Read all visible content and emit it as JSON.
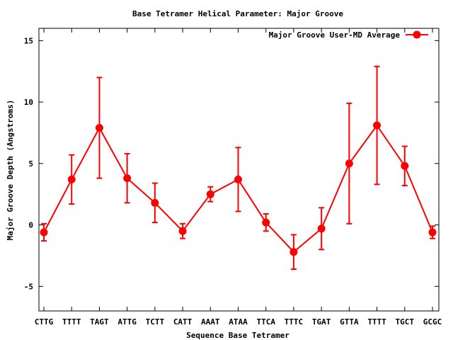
{
  "chart_data": {
    "type": "line",
    "title": "Base Tetramer Helical Parameter: Major Groove",
    "xlabel": "Sequence Base Tetramer",
    "ylabel": "Major Groove Depth (Angstroms)",
    "ylim": [
      -7,
      16
    ],
    "yticks": [
      -5,
      0,
      5,
      10,
      15
    ],
    "grid": false,
    "legend_position": "top-right",
    "categories": [
      "CTTG",
      "TTTT",
      "TAGT",
      "ATTG",
      "TCTT",
      "CATT",
      "AAAT",
      "ATAA",
      "TTCA",
      "TTTC",
      "TGAT",
      "GTTA",
      "TTTT",
      "TGCT",
      "GCGC"
    ],
    "series": [
      {
        "name": "Major Groove User-MD Average",
        "color": "#ff0000",
        "values": [
          -0.6,
          3.7,
          7.9,
          3.8,
          1.8,
          -0.5,
          2.5,
          3.7,
          0.2,
          -2.2,
          -0.3,
          5.0,
          8.1,
          4.8,
          -0.6
        ],
        "error": [
          0.7,
          2.0,
          4.1,
          2.0,
          1.6,
          0.6,
          0.6,
          2.6,
          0.7,
          1.4,
          1.7,
          4.9,
          4.8,
          1.6,
          0.5
        ]
      }
    ]
  }
}
